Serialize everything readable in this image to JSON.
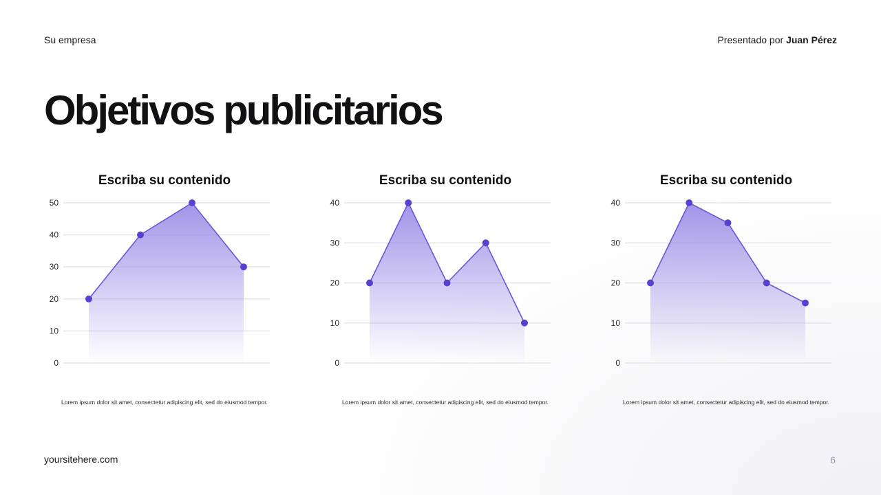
{
  "header": {
    "company": "Su empresa",
    "presented_by": "Presentado por",
    "presenter_name": "Juan Pérez"
  },
  "title": "Objetivos publicitarios",
  "footer": {
    "site": "yoursitehere.com",
    "page_number": "6"
  },
  "colors": {
    "accent": "#5b3fd1",
    "line": "#6b56d6",
    "fill_top": "#9d8ee6",
    "grid": "#e4e4ea"
  },
  "panels": [
    {
      "title": "Escriba su contenido",
      "caption": "Lorem ipsum dolor sit amet, consectetur adipiscing elit, sed do eiusmod tempor."
    },
    {
      "title": "Escriba su contenido",
      "caption": "Lorem ipsum dolor sit amet, consectetur adipiscing elit, sed do eiusmod tempor."
    },
    {
      "title": "Escriba su contenido",
      "caption": "Lorem ipsum dolor sit amet, consectetur adipiscing elit, sed do eiusmod tempor."
    }
  ],
  "chart_data": [
    {
      "type": "area",
      "title": "Escriba su contenido",
      "x": [
        1,
        2,
        3,
        4
      ],
      "values": [
        20,
        40,
        50,
        30
      ],
      "ylim": [
        0,
        50
      ],
      "yticks": [
        0,
        10,
        20,
        30,
        40,
        50
      ],
      "grid": true
    },
    {
      "type": "area",
      "title": "Escriba su contenido",
      "x": [
        1,
        2,
        3,
        4,
        5
      ],
      "values": [
        20,
        40,
        20,
        30,
        10
      ],
      "ylim": [
        0,
        40
      ],
      "yticks": [
        0,
        10,
        20,
        30,
        40
      ],
      "grid": true
    },
    {
      "type": "area",
      "title": "Escriba su contenido",
      "x": [
        1,
        2,
        3,
        4,
        5
      ],
      "values": [
        20,
        40,
        35,
        20,
        15
      ],
      "ylim": [
        0,
        40
      ],
      "yticks": [
        0,
        10,
        20,
        30,
        40
      ],
      "grid": true
    }
  ]
}
